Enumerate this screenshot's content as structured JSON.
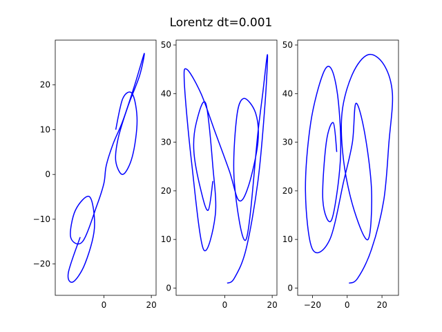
{
  "figure": {
    "title": "Lorentz  dt=0.001"
  },
  "chart_data": [
    {
      "type": "line",
      "title": "",
      "xlabel": "",
      "ylabel": "",
      "projection": "x-y",
      "xlim": [
        -20.5,
        22
      ],
      "ylim": [
        -27,
        30
      ],
      "xticks": [
        0,
        20
      ],
      "yticks": [
        -20,
        -10,
        0,
        10,
        20
      ],
      "color": "#0000ff",
      "series": [
        {
          "x": [
            -10,
            -15,
            -13,
            -8,
            -4,
            -6,
            -12,
            -14,
            -9,
            -3,
            0,
            1,
            4,
            8,
            13,
            17,
            15,
            10,
            6,
            5,
            8,
            12,
            14,
            12,
            8,
            5
          ],
          "y": [
            -14,
            -22,
            -24,
            -20,
            -12,
            -5,
            -8,
            -14,
            -15,
            -7,
            -2,
            2,
            7,
            12,
            20,
            27,
            22,
            15,
            8,
            3,
            0,
            4,
            12,
            18,
            17,
            10
          ]
        }
      ]
    },
    {
      "type": "line",
      "title": "",
      "xlabel": "",
      "ylabel": "",
      "projection": "x-z",
      "xlim": [
        -20.5,
        22
      ],
      "ylim": [
        -1.5,
        51
      ],
      "xticks": [
        0,
        20
      ],
      "yticks": [
        0,
        10,
        20,
        30,
        40,
        50
      ],
      "color": "#0000ff",
      "series": [
        {
          "x": [
            1,
            4,
            9,
            14,
            17,
            18,
            16,
            14,
            9,
            4,
            5,
            8,
            13,
            14,
            10,
            6,
            2,
            -4,
            -10,
            -16,
            -17,
            -14,
            -9,
            -4,
            -5,
            -8,
            -12,
            -13,
            -10,
            -7,
            -5
          ],
          "y": [
            1,
            2,
            8,
            22,
            38,
            48,
            40,
            32,
            10,
            22,
            35,
            39,
            36,
            30,
            21,
            18,
            24,
            32,
            40,
            45,
            42,
            26,
            8,
            15,
            25,
            38,
            34,
            28,
            20,
            16,
            22
          ]
        }
      ]
    },
    {
      "type": "line",
      "title": "",
      "xlabel": "",
      "ylabel": "",
      "projection": "y-z",
      "xlim": [
        -28.5,
        29.5
      ],
      "ylim": [
        -1.5,
        51
      ],
      "xticks": [
        -20,
        0,
        20
      ],
      "yticks": [
        0,
        10,
        20,
        30,
        40,
        50
      ],
      "color": "#0000ff",
      "series": [
        {
          "x": [
            1,
            6,
            14,
            21,
            24,
            26,
            21,
            12,
            3,
            -3,
            -2,
            4,
            12,
            14,
            10,
            5,
            3,
            -2,
            -10,
            -20,
            -24,
            -21,
            -14,
            -9,
            -5,
            -4,
            -9,
            -14,
            -12,
            -8,
            -6
          ],
          "y": [
            1,
            2,
            8,
            18,
            30,
            40,
            46,
            48,
            44,
            36,
            26,
            16,
            10,
            20,
            32,
            38,
            30,
            22,
            10,
            8,
            20,
            34,
            44,
            45,
            38,
            26,
            14,
            18,
            30,
            34,
            28
          ]
        }
      ]
    }
  ]
}
